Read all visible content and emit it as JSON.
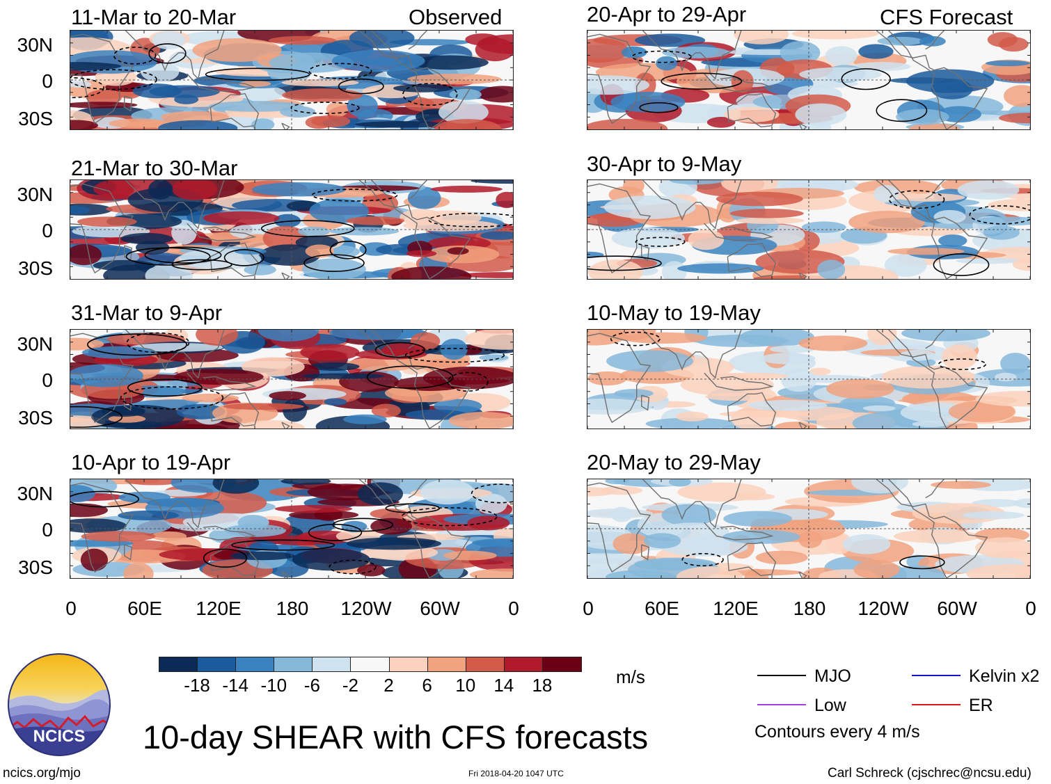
{
  "columns": {
    "observed_header": "Observed",
    "forecast_header": "CFS Forecast"
  },
  "panels": {
    "observed": [
      {
        "title": "11-Mar to 20-Mar"
      },
      {
        "title": "21-Mar to 30-Mar"
      },
      {
        "title": "31-Mar to 9-Apr"
      },
      {
        "title": "10-Apr to 19-Apr"
      }
    ],
    "forecast": [
      {
        "title": "20-Apr to 29-Apr"
      },
      {
        "title": "30-Apr to 9-May"
      },
      {
        "title": "10-May to 19-May"
      },
      {
        "title": "20-May to 29-May"
      }
    ]
  },
  "axes": {
    "lat_labels": [
      "30N",
      "0",
      "30S"
    ],
    "lon_labels": [
      "0",
      "60E",
      "120E",
      "180",
      "120W",
      "60W",
      "0"
    ]
  },
  "colorbar": {
    "labels": [
      "-18",
      "-14",
      "-10",
      "-6",
      "-2",
      "2",
      "6",
      "10",
      "14",
      "18"
    ],
    "colors": [
      "#0b2a55",
      "#1b5a9c",
      "#3a83c0",
      "#86b8da",
      "#cfe2ef",
      "#f7f7f7",
      "#fbd2bd",
      "#f1a27f",
      "#d25b4a",
      "#b01a2a",
      "#6b0014"
    ],
    "units": "m/s"
  },
  "legend": {
    "items": [
      {
        "label": "MJO",
        "color": "#000000"
      },
      {
        "label": "Kelvin x2",
        "color": "#1414c8"
      },
      {
        "label": "Low",
        "color": "#a040e0"
      },
      {
        "label": "ER",
        "color": "#e01414"
      }
    ],
    "note": "Contours every 4 m/s"
  },
  "footer": {
    "main_title": "10-day SHEAR with CFS forecasts",
    "logo_text": "NCICS",
    "url": "ncics.org/mjo",
    "timestamp": "Fri 2018-04-20 1047 UTC",
    "author": "Carl Schreck (cjschrec@ncsu.edu)"
  }
}
